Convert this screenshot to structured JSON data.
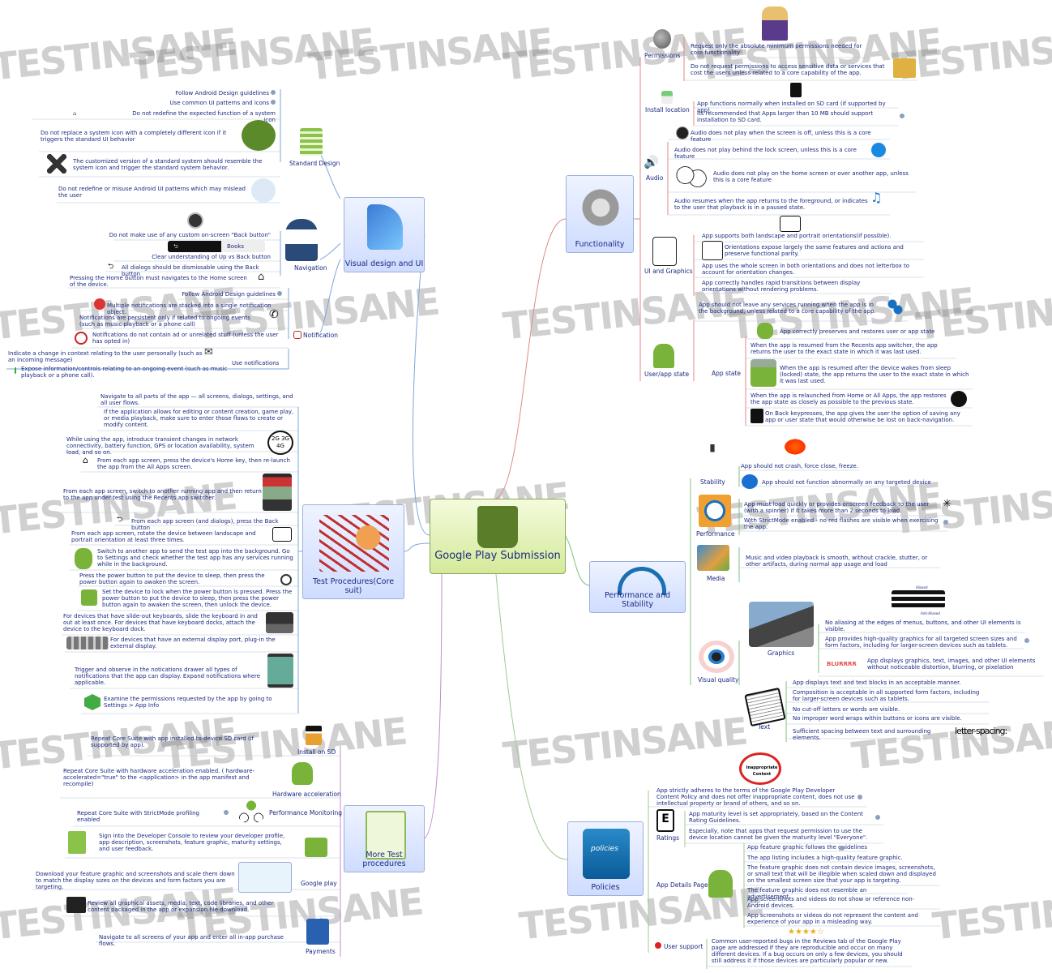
{
  "watermark": "TESTINSANE",
  "center": "Google Play Submission",
  "hubs": {
    "visual": "Visual design and UI",
    "test": "Test Procedures(Core suit)",
    "more": "More Test procedures",
    "func": "Functionality",
    "perf": "Performance and Stability",
    "policies": "Policies"
  },
  "visual": {
    "standard_design": "Standard Design",
    "sd": [
      "Follow Android Design guidelines",
      "Use common UI patterns and icons",
      "Do not redefine the expected function of a system icon",
      "Do not replace a system icon with a completely different icon if it triggers the standard UI behavior",
      "The customized version of a standard system should resemble the system icon and trigger the standard system behavior.",
      "Do not redefine or misuse Android UI patterns which may mislead the user"
    ],
    "navigation": "Navigation",
    "nav": [
      "Do not make use of any custom on-screen \"Back button\"",
      "Clear understanding of Up vs Back button",
      "All dialogs should be dismissable using the Back button",
      "Pressing the Home button must navigates to the Home screen of the device."
    ],
    "books": "Books",
    "notification": "Notification",
    "notif": [
      "Follow Android Design guidelines",
      "Multiple notifications are stacked into a single notification object.",
      "Notifications are persistent only if related to ongoing events (such as music playback or a phone call)",
      "Notifications do not contain ad or unrelated stuff (unless the user has opted in)"
    ],
    "use_notifications": "Use notifications",
    "use": [
      "Indicate a change in context relating to the user personally (such as an incoming message)",
      "Expose information/controls relating to an ongoing event (such as music playback or a phone call)."
    ]
  },
  "test": [
    "Navigate to all parts of the app — all screens, dialogs, settings, and all user flows.",
    "If the application allows for editing or content creation, game play, or media playback, make sure to enter those flows to create or modify content.",
    "While using the app, introduce transient changes in network connectivity, battery function, GPS or location availability, system load, and so on.",
    "From each app screen, press the device's Home key, then re-launch the app from the All Apps screen.",
    "From each app screen, switch to another running app and then return to the app under test using the Recents app switcher.",
    "From each app screen (and dialogs), press the Back button",
    "From each app screen, rotate the device between landscape and portrait orientation at least three times.",
    "Switch to another app to send the test app into the background. Go to Settings and check whether the test app has any services running while in the background.",
    "Press the power button to put the device to sleep, then press the power button again to awaken the screen.",
    "Set the device to lock when the power button is pressed. Press the power button to put the device to sleep, then press the power button again to awaken the screen, then unlock the device.",
    "For devices that have slide-out keyboards, slide the keyboard in and out at least once. For devices that have keyboard docks, attach the device to the keyboard dock.",
    "For devices that have an external display port, plug-in the external display.",
    "Trigger and observe in the notications drawer all types of notifications that the app can display. Expand notifications where applicable.",
    "Examine the permissions requested by the app by going to Settings > App Info"
  ],
  "net_badge": "2G 3G 4G",
  "more": {
    "install_sd": "Install on SD",
    "install_sd_text": "Repeat Core Suite with app installed to device SD card (if supported by app).",
    "hw": "Hardware acceleration",
    "hw_text": "Repeat Core Suite with hardware acceleration enabled. ( hardware-accelerated=\"true\" to the <application> in the app manifest and recompile)",
    "perf_mon": "Performance Monitoring",
    "perf_mon_text": "Repeat Core Suite with StrictMode profiling enabled",
    "gplay": "Google play",
    "gplay_items": [
      "Sign into the Developer Console to review your developer profile, app description, screenshots, feature graphic, maturity settings, and user feedback.",
      "Download your feature graphic and screenshots and scale them down to match the display sizes on the devices and form factors you are targeting.",
      "Review all graphical assets, media, text, code libraries, and other content packaged in the app or expansion file download."
    ],
    "payments": "Payments",
    "payments_text": "Navigate to all screens of your app and enter all in-app purchase flows."
  },
  "func": {
    "permissions": "Permissions",
    "perm": [
      "Request only the absolute minimum permissions needed for core functionality",
      "Do not request permissions to access sensitive data or services that cost the users unless related to a core capability of the app."
    ],
    "install": "Install location",
    "inst": [
      "App functions normally when installed on SD card (if supported by app).",
      "Its recommended that Apps larger than 10 MB should support installation to SD card."
    ],
    "audio": "Audio",
    "aud": [
      "Audio does not play when the screen is off, unless this is a core feature",
      "Audio does not play behind the lock screen, unless this is a core feature",
      "Audio does not play on the home screen or over another app, unless this is a core feature",
      "Audio resumes when the app returns to the foreground, or indicates to the user that playback is in a paused state."
    ],
    "ui": "UI and Graphics",
    "uig": [
      "App supports both landscape and portrait orientations(if possible).",
      "Orientations expose largely the same features and actions and preserve functional parity.",
      "App uses the whole screen in both orientations and does not letterbox to account for orientation changes.",
      "App correctly handles rapid transitions between display orientations without rendering problems."
    ],
    "userstate": "User/app state",
    "services": "App should not leave any services running when the app is in the background, unless related to a core capability of the app.",
    "appstate": "App state",
    "as": [
      "App correctly preserves and restores user or app state",
      "When the app is resumed from the Recents app switcher, the app returns the user to the exact state in which it was last used.",
      "When the app is resumed after the device wakes from sleep (locked) state, the app returns the user to the exact state in which it was last used.",
      "When the app is relaunched from Home or All Apps, the app restores the app state as closely as possible to the previous state.",
      "On Back keypresses, the app gives the user the option of saving any app or user state that would otherwise be lost on back-navigation."
    ]
  },
  "perf": {
    "stability": "Stability",
    "stab": [
      "App should not crash, force close, freeze.",
      "App should not function abnormally on any targeted device"
    ],
    "performance": "Performance",
    "pf": [
      "App must load quickly or provides onscreen feedback to the user (with a spinner) if it takes more than 2 seconds to load.",
      "With StrictMode enabled - no red flashes are visible when exercising the app."
    ],
    "media": "Media",
    "media_text": "Music and video playback is smooth, without crackle, stutter, or other artifacts, during normal app usage and load",
    "visual_quality": "Visual quality",
    "graphics": "Graphics",
    "aliased": "Aliased",
    "antialiased": "Anti-Aliased",
    "gfx": [
      "No aliasing at the edges of menus, buttons, and other UI elements is visible.",
      "App provides high-quality graphics for all targeted screen sizes and form factors, including for larger-screen devices such as tablets.",
      "App displays graphics, text, images, and other UI elements without noticeable distortion, blurring, or pixelation"
    ],
    "blur": "BLURRRR",
    "text": "Text",
    "txt": [
      "App displays text and text blocks in an acceptable manner.",
      "Composition is acceptable in all supported form factors, including for larger-screen devices such as tablets.",
      "No cut-off letters or words are visible.",
      "No improper word wraps within buttons or icons are visible.",
      "Sufficient spacing between text and surrounding elements."
    ],
    "spacing": "letter-spacing:"
  },
  "policies": {
    "inapp": "Inappropriate Content",
    "top": "App strictly adheres to the terms of the Google Play Developer Content Policy and does not offer inappropriate content, does not use intellectual property or brand of others, and so on.",
    "ratings": "Ratings",
    "rat": [
      "App maturity level is set appropriately, based on the Content Rating Guidelines.",
      "Especially, note that apps that request permission to use the device location cannot be given the maturity level \"Everyone\"."
    ],
    "details": "App Details Page",
    "det": [
      "App feature graphic follows the guidelines",
      "The app listing includes a high-quality feature graphic.",
      "The feature graphic does not contain device images, screenshots, or small text that will be illegible when scaled down and displayed on the smallest screen size that your app is targeting.",
      "The feature graphic does not resemble an advertisement.",
      "App screenshots and videos do not show or reference non-Android devices.",
      "App screenshots or videos do not represent the content and experience of your app in a misleading way."
    ],
    "support": "User support",
    "sup": "Common user-reported bugs in the Reviews tab of the Google Play page are addressed if they are reproducible and occur on many different devices. If a bug occurs on only a few devices, you should still address it if those devices are particularly popular or new."
  }
}
